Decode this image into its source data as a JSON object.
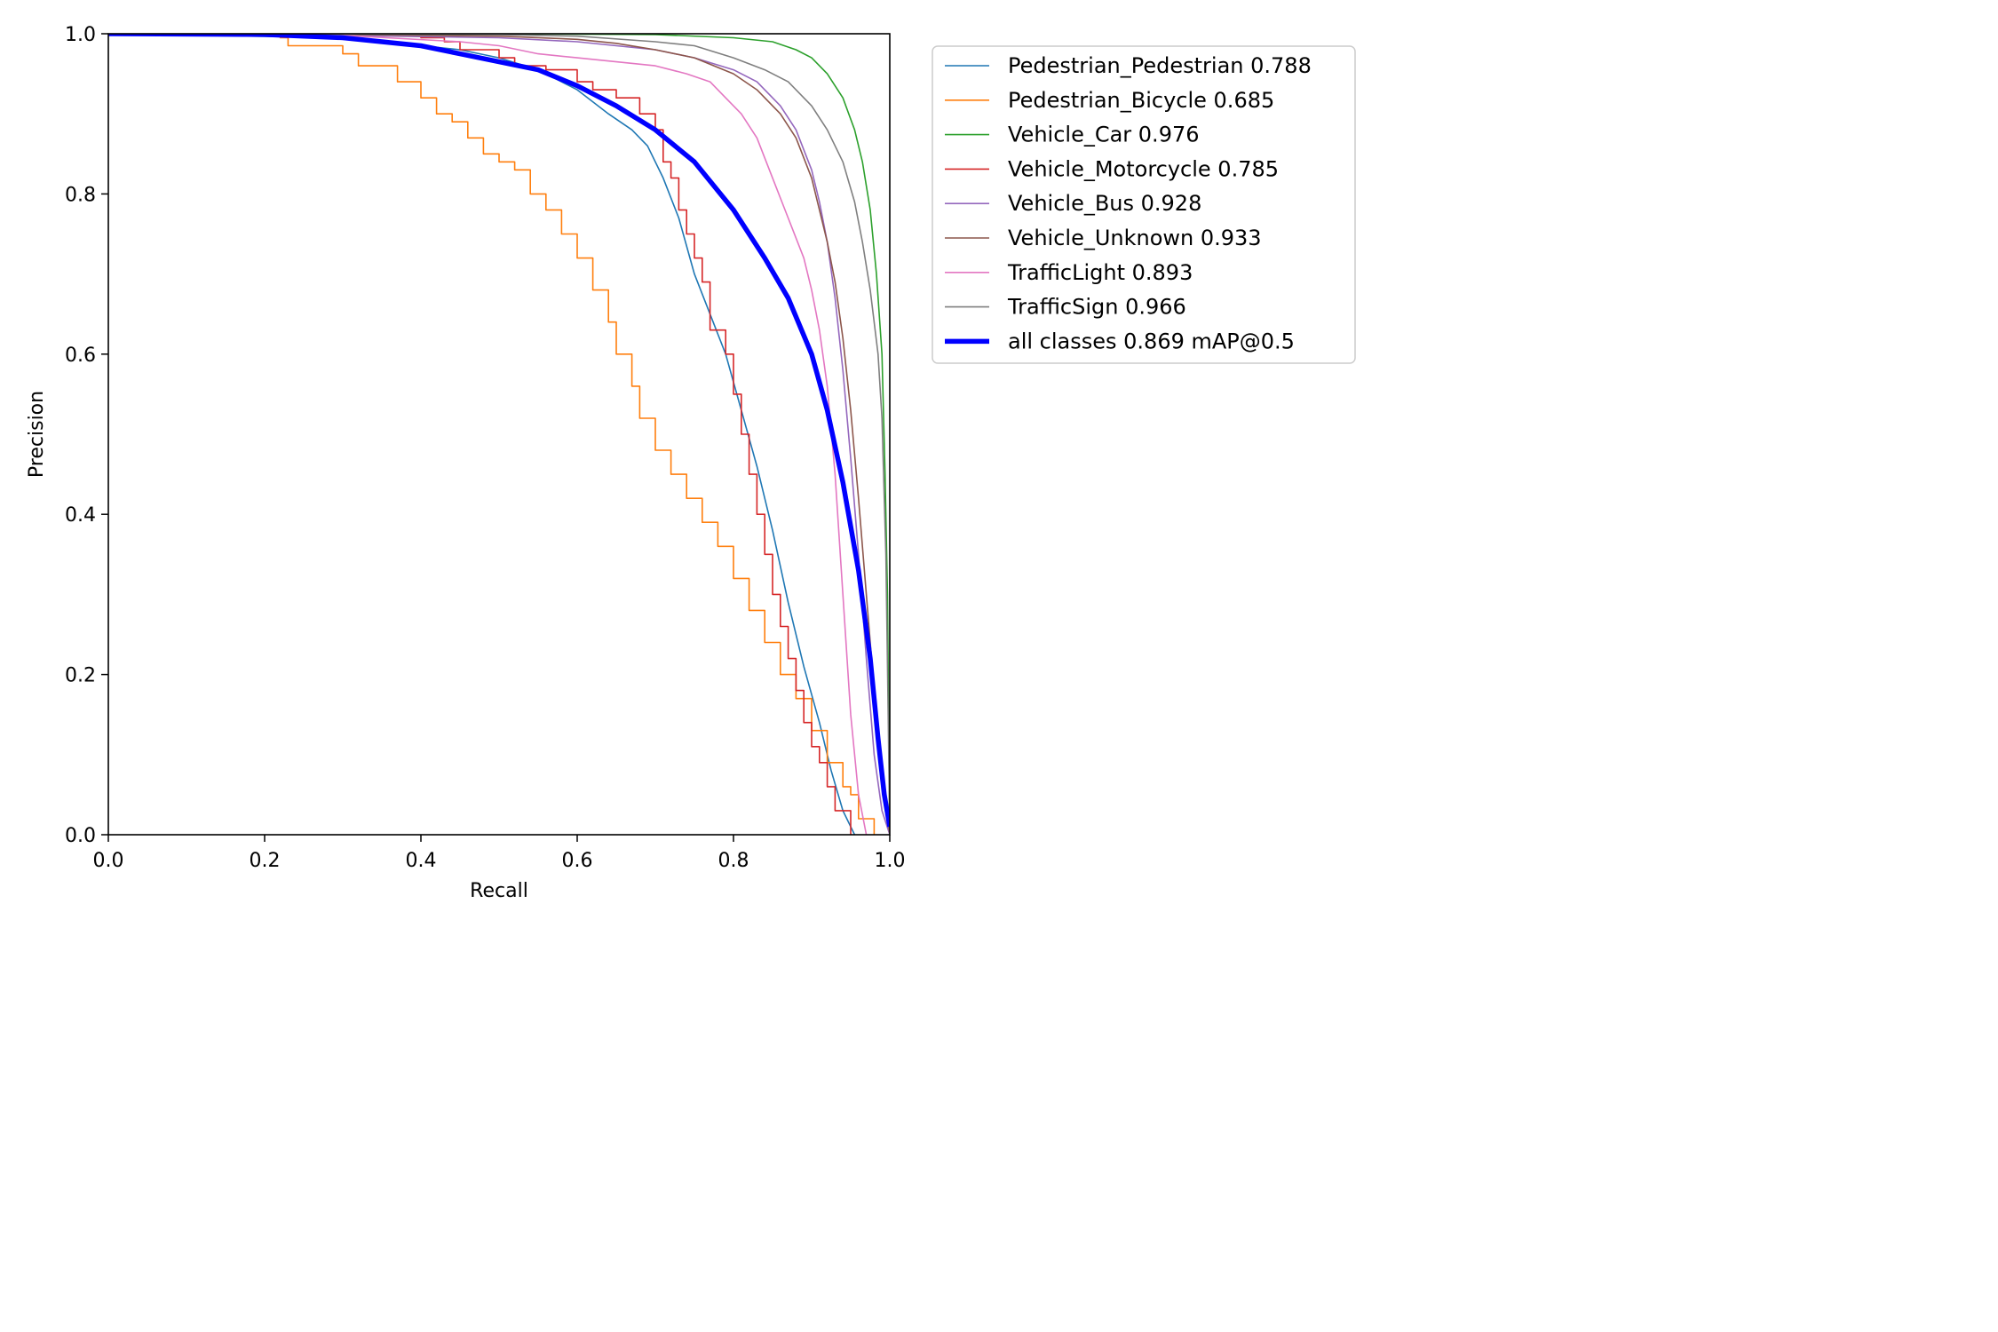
{
  "chart_data": {
    "type": "line",
    "title": "",
    "xlabel": "Recall",
    "ylabel": "Precision",
    "xlim": [
      0.0,
      1.0
    ],
    "ylim": [
      0.0,
      1.0
    ],
    "xticks": [
      "0.0",
      "0.2",
      "0.4",
      "0.6",
      "0.8",
      "1.0"
    ],
    "yticks": [
      "0.0",
      "0.2",
      "0.4",
      "0.6",
      "0.8",
      "1.0"
    ],
    "grid": false,
    "legend_position": "outside-upper-right",
    "series": [
      {
        "name": "Pedestrian_Pedestrian 0.788",
        "color": "#1f77b4",
        "step": false,
        "highlight": false,
        "points": [
          [
            0,
            1.0
          ],
          [
            0.3,
            0.995
          ],
          [
            0.45,
            0.98
          ],
          [
            0.5,
            0.97
          ],
          [
            0.55,
            0.955
          ],
          [
            0.6,
            0.93
          ],
          [
            0.64,
            0.9
          ],
          [
            0.67,
            0.88
          ],
          [
            0.69,
            0.86
          ],
          [
            0.71,
            0.82
          ],
          [
            0.73,
            0.77
          ],
          [
            0.75,
            0.7
          ],
          [
            0.77,
            0.65
          ],
          [
            0.79,
            0.6
          ],
          [
            0.81,
            0.53
          ],
          [
            0.83,
            0.46
          ],
          [
            0.85,
            0.38
          ],
          [
            0.87,
            0.29
          ],
          [
            0.89,
            0.21
          ],
          [
            0.91,
            0.14
          ],
          [
            0.925,
            0.08
          ],
          [
            0.94,
            0.03
          ],
          [
            0.955,
            0.0
          ]
        ]
      },
      {
        "name": "Pedestrian_Bicycle 0.685",
        "color": "#ff7f0e",
        "step": true,
        "highlight": false,
        "points": [
          [
            0,
            1.0
          ],
          [
            0.22,
            0.995
          ],
          [
            0.23,
            0.985
          ],
          [
            0.3,
            0.975
          ],
          [
            0.32,
            0.96
          ],
          [
            0.37,
            0.94
          ],
          [
            0.4,
            0.92
          ],
          [
            0.42,
            0.9
          ],
          [
            0.44,
            0.89
          ],
          [
            0.46,
            0.87
          ],
          [
            0.48,
            0.85
          ],
          [
            0.5,
            0.84
          ],
          [
            0.52,
            0.83
          ],
          [
            0.54,
            0.8
          ],
          [
            0.56,
            0.78
          ],
          [
            0.58,
            0.75
          ],
          [
            0.6,
            0.72
          ],
          [
            0.62,
            0.68
          ],
          [
            0.64,
            0.64
          ],
          [
            0.65,
            0.6
          ],
          [
            0.67,
            0.56
          ],
          [
            0.68,
            0.52
          ],
          [
            0.7,
            0.48
          ],
          [
            0.72,
            0.45
          ],
          [
            0.74,
            0.42
          ],
          [
            0.76,
            0.39
          ],
          [
            0.78,
            0.36
          ],
          [
            0.8,
            0.32
          ],
          [
            0.82,
            0.28
          ],
          [
            0.84,
            0.24
          ],
          [
            0.86,
            0.2
          ],
          [
            0.88,
            0.17
          ],
          [
            0.9,
            0.13
          ],
          [
            0.92,
            0.09
          ],
          [
            0.94,
            0.06
          ],
          [
            0.95,
            0.05
          ],
          [
            0.96,
            0.02
          ],
          [
            0.98,
            0.0
          ]
        ]
      },
      {
        "name": "Vehicle_Car 0.976",
        "color": "#2ca02c",
        "step": false,
        "highlight": false,
        "points": [
          [
            0,
            1.0
          ],
          [
            0.5,
            1.0
          ],
          [
            0.7,
            0.999
          ],
          [
            0.8,
            0.995
          ],
          [
            0.85,
            0.99
          ],
          [
            0.88,
            0.98
          ],
          [
            0.9,
            0.97
          ],
          [
            0.92,
            0.95
          ],
          [
            0.94,
            0.92
          ],
          [
            0.955,
            0.88
          ],
          [
            0.965,
            0.84
          ],
          [
            0.975,
            0.78
          ],
          [
            0.983,
            0.7
          ],
          [
            0.99,
            0.6
          ],
          [
            0.994,
            0.45
          ],
          [
            0.997,
            0.3
          ],
          [
            0.999,
            0.1
          ],
          [
            1.0,
            0.0
          ]
        ]
      },
      {
        "name": "Vehicle_Motorcycle 0.785",
        "color": "#d62728",
        "step": true,
        "highlight": false,
        "points": [
          [
            0,
            1.0
          ],
          [
            0.4,
            0.995
          ],
          [
            0.43,
            0.99
          ],
          [
            0.45,
            0.98
          ],
          [
            0.5,
            0.97
          ],
          [
            0.52,
            0.96
          ],
          [
            0.56,
            0.955
          ],
          [
            0.6,
            0.94
          ],
          [
            0.62,
            0.93
          ],
          [
            0.65,
            0.92
          ],
          [
            0.68,
            0.9
          ],
          [
            0.7,
            0.88
          ],
          [
            0.71,
            0.84
          ],
          [
            0.72,
            0.82
          ],
          [
            0.73,
            0.78
          ],
          [
            0.74,
            0.75
          ],
          [
            0.75,
            0.72
          ],
          [
            0.76,
            0.69
          ],
          [
            0.77,
            0.63
          ],
          [
            0.79,
            0.6
          ],
          [
            0.8,
            0.55
          ],
          [
            0.81,
            0.5
          ],
          [
            0.82,
            0.45
          ],
          [
            0.83,
            0.4
          ],
          [
            0.84,
            0.35
          ],
          [
            0.85,
            0.3
          ],
          [
            0.86,
            0.26
          ],
          [
            0.87,
            0.22
          ],
          [
            0.88,
            0.18
          ],
          [
            0.89,
            0.14
          ],
          [
            0.9,
            0.11
          ],
          [
            0.91,
            0.09
          ],
          [
            0.92,
            0.06
          ],
          [
            0.93,
            0.03
          ],
          [
            0.95,
            0.0
          ]
        ]
      },
      {
        "name": "Vehicle_Bus 0.928",
        "color": "#9467bd",
        "step": false,
        "highlight": false,
        "points": [
          [
            0,
            1.0
          ],
          [
            0.3,
            0.998
          ],
          [
            0.5,
            0.995
          ],
          [
            0.6,
            0.99
          ],
          [
            0.65,
            0.985
          ],
          [
            0.7,
            0.98
          ],
          [
            0.75,
            0.97
          ],
          [
            0.8,
            0.955
          ],
          [
            0.83,
            0.94
          ],
          [
            0.86,
            0.91
          ],
          [
            0.88,
            0.88
          ],
          [
            0.9,
            0.83
          ],
          [
            0.91,
            0.79
          ],
          [
            0.92,
            0.74
          ],
          [
            0.93,
            0.67
          ],
          [
            0.94,
            0.58
          ],
          [
            0.95,
            0.47
          ],
          [
            0.96,
            0.35
          ],
          [
            0.97,
            0.22
          ],
          [
            0.98,
            0.1
          ],
          [
            0.99,
            0.03
          ],
          [
            1.0,
            0.0
          ]
        ]
      },
      {
        "name": "Vehicle_Unknown 0.933",
        "color": "#8c564b",
        "step": false,
        "highlight": false,
        "points": [
          [
            0,
            1.0
          ],
          [
            0.3,
            0.999
          ],
          [
            0.5,
            0.997
          ],
          [
            0.6,
            0.993
          ],
          [
            0.65,
            0.988
          ],
          [
            0.7,
            0.98
          ],
          [
            0.75,
            0.97
          ],
          [
            0.8,
            0.95
          ],
          [
            0.83,
            0.93
          ],
          [
            0.86,
            0.9
          ],
          [
            0.88,
            0.87
          ],
          [
            0.9,
            0.82
          ],
          [
            0.91,
            0.78
          ],
          [
            0.92,
            0.74
          ],
          [
            0.93,
            0.69
          ],
          [
            0.94,
            0.62
          ],
          [
            0.95,
            0.53
          ],
          [
            0.96,
            0.42
          ],
          [
            0.97,
            0.3
          ],
          [
            0.98,
            0.18
          ],
          [
            0.99,
            0.08
          ],
          [
            1.0,
            0.0
          ]
        ]
      },
      {
        "name": "TrafficLight 0.893",
        "color": "#e377c2",
        "step": false,
        "highlight": false,
        "points": [
          [
            0,
            1.0
          ],
          [
            0.3,
            0.998
          ],
          [
            0.45,
            0.99
          ],
          [
            0.5,
            0.985
          ],
          [
            0.55,
            0.975
          ],
          [
            0.6,
            0.97
          ],
          [
            0.65,
            0.965
          ],
          [
            0.7,
            0.96
          ],
          [
            0.74,
            0.95
          ],
          [
            0.77,
            0.94
          ],
          [
            0.79,
            0.92
          ],
          [
            0.81,
            0.9
          ],
          [
            0.83,
            0.87
          ],
          [
            0.85,
            0.82
          ],
          [
            0.87,
            0.77
          ],
          [
            0.89,
            0.72
          ],
          [
            0.9,
            0.68
          ],
          [
            0.91,
            0.63
          ],
          [
            0.92,
            0.56
          ],
          [
            0.93,
            0.45
          ],
          [
            0.94,
            0.3
          ],
          [
            0.95,
            0.15
          ],
          [
            0.96,
            0.05
          ],
          [
            0.97,
            0.0
          ]
        ]
      },
      {
        "name": "TrafficSign 0.966",
        "color": "#7f7f7f",
        "step": false,
        "highlight": false,
        "points": [
          [
            0,
            1.0
          ],
          [
            0.5,
            0.999
          ],
          [
            0.6,
            0.997
          ],
          [
            0.7,
            0.99
          ],
          [
            0.75,
            0.985
          ],
          [
            0.8,
            0.97
          ],
          [
            0.84,
            0.955
          ],
          [
            0.87,
            0.94
          ],
          [
            0.9,
            0.91
          ],
          [
            0.92,
            0.88
          ],
          [
            0.94,
            0.84
          ],
          [
            0.955,
            0.79
          ],
          [
            0.965,
            0.74
          ],
          [
            0.975,
            0.68
          ],
          [
            0.985,
            0.6
          ],
          [
            0.99,
            0.52
          ],
          [
            0.995,
            0.35
          ],
          [
            0.998,
            0.15
          ],
          [
            1.0,
            0.0
          ]
        ]
      },
      {
        "name": "all classes 0.869 mAP@0.5",
        "color": "#0000ff",
        "step": false,
        "highlight": true,
        "points": [
          [
            0,
            1.0
          ],
          [
            0.2,
            0.999
          ],
          [
            0.3,
            0.995
          ],
          [
            0.35,
            0.99
          ],
          [
            0.4,
            0.985
          ],
          [
            0.45,
            0.975
          ],
          [
            0.5,
            0.965
          ],
          [
            0.55,
            0.955
          ],
          [
            0.6,
            0.935
          ],
          [
            0.65,
            0.91
          ],
          [
            0.7,
            0.88
          ],
          [
            0.75,
            0.84
          ],
          [
            0.8,
            0.78
          ],
          [
            0.84,
            0.72
          ],
          [
            0.87,
            0.67
          ],
          [
            0.9,
            0.6
          ],
          [
            0.92,
            0.53
          ],
          [
            0.94,
            0.44
          ],
          [
            0.96,
            0.33
          ],
          [
            0.975,
            0.22
          ],
          [
            0.985,
            0.12
          ],
          [
            0.993,
            0.05
          ],
          [
            1.0,
            0.01
          ]
        ]
      }
    ]
  }
}
